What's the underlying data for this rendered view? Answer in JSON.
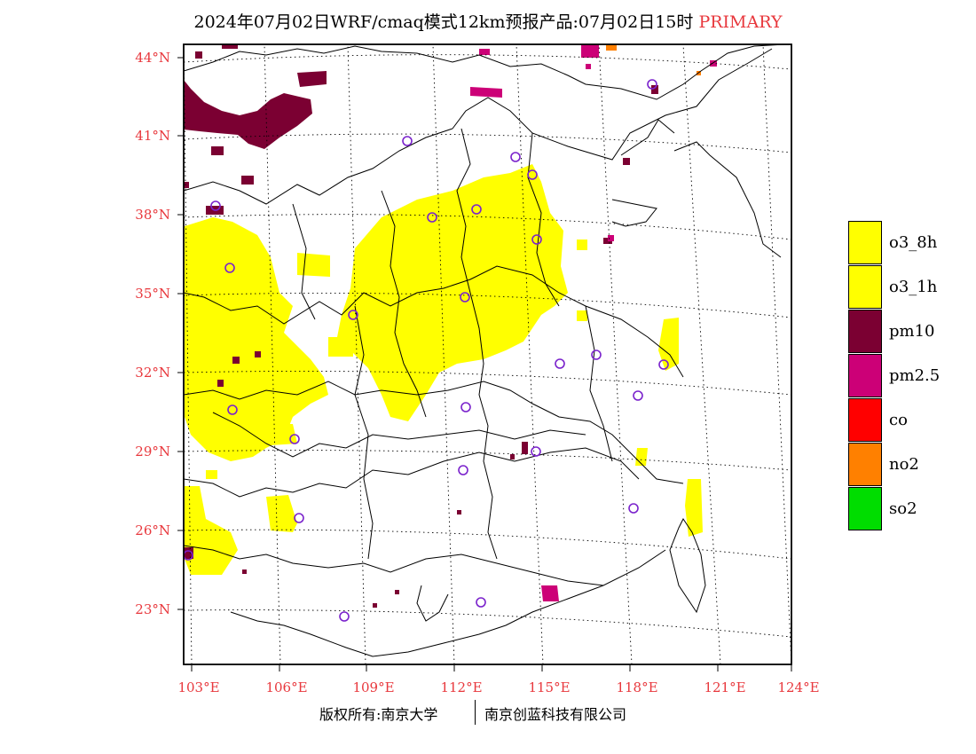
{
  "title": {
    "main": "2024年07月02日WRF/cmaq模式12km预报产品:07月02日15时",
    "tag": "PRIMARY"
  },
  "axes": {
    "lat_labels": [
      "44°N",
      "41°N",
      "38°N",
      "35°N",
      "32°N",
      "29°N",
      "26°N",
      "23°N"
    ],
    "lon_labels": [
      "103°E",
      "106°E",
      "109°E",
      "112°E",
      "115°E",
      "118°E",
      "121°E",
      "124°E"
    ]
  },
  "colors": {
    "accent": "#e8383d",
    "o3": "#ffff00",
    "pm10": "#7b0032",
    "pm25": "#cc0077",
    "co": "#ff0000",
    "no2": "#ff8000",
    "so2": "#00dd00",
    "station": "#7a22cc"
  },
  "legend": [
    {
      "label": "o3_8h",
      "color": "#ffff00"
    },
    {
      "label": "o3_1h",
      "color": "#ffff00"
    },
    {
      "label": "pm10",
      "color": "#7b0032"
    },
    {
      "label": "pm2.5",
      "color": "#cc0077"
    },
    {
      "label": "co",
      "color": "#ff0000"
    },
    {
      "label": "no2",
      "color": "#ff8000"
    },
    {
      "label": "so2",
      "color": "#00dd00"
    }
  ],
  "copyright": {
    "left": "版权所有:南京大学",
    "right": "南京创蓝科技有限公司"
  }
}
